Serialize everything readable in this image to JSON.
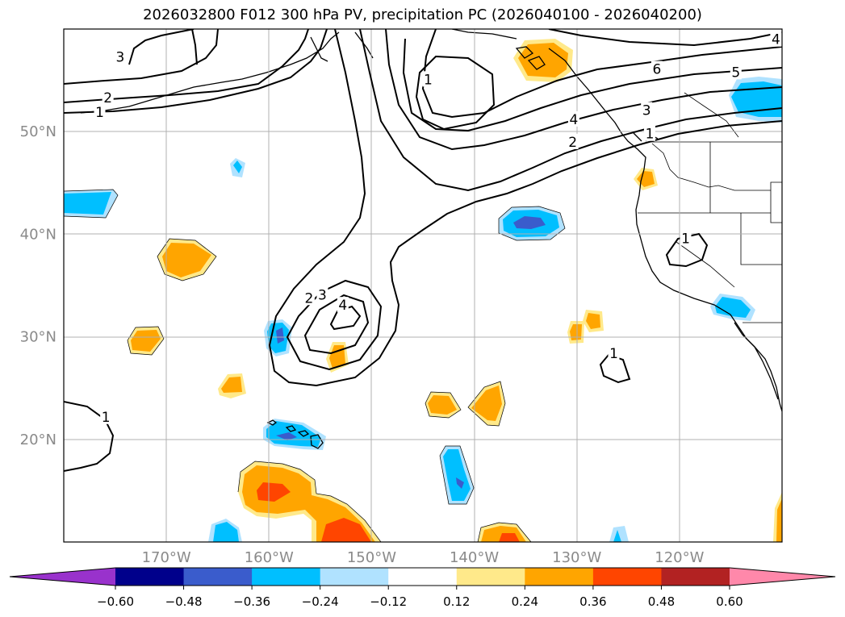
{
  "title": "2026032800 F012 300 hPa PV, precipitation PC (2026040100 - 2026040200)",
  "map": {
    "projection": "equirectangular",
    "lon_range": [
      -180,
      -110
    ],
    "lat_range": [
      10,
      60
    ],
    "lat_ticks": [
      {
        "value": 50,
        "label": "50°N"
      },
      {
        "value": 40,
        "label": "40°N"
      },
      {
        "value": 30,
        "label": "30°N"
      },
      {
        "value": 20,
        "label": "20°N"
      }
    ],
    "lon_ticks": [
      {
        "value": -170,
        "label": "170°W"
      },
      {
        "value": -160,
        "label": "160°W"
      },
      {
        "value": -150,
        "label": "150°W"
      },
      {
        "value": -140,
        "label": "140°W"
      },
      {
        "value": -130,
        "label": "130°W"
      },
      {
        "value": -120,
        "label": "120°W"
      }
    ],
    "pv_contour_labels": [
      {
        "text": "3",
        "lon": -174.5,
        "lat": 57.3
      },
      {
        "text": "2",
        "lon": -175.7,
        "lat": 53.3
      },
      {
        "text": "1",
        "lon": -176.5,
        "lat": 51.9
      },
      {
        "text": "1",
        "lon": -144.5,
        "lat": 55.1
      },
      {
        "text": "6",
        "lon": -122.2,
        "lat": 56.1
      },
      {
        "text": "5",
        "lon": -114.5,
        "lat": 55.8
      },
      {
        "text": "4",
        "lon": -110.6,
        "lat": 59.0
      },
      {
        "text": "3",
        "lon": -123.2,
        "lat": 52.1
      },
      {
        "text": "4",
        "lon": -130.3,
        "lat": 51.2
      },
      {
        "text": "2",
        "lon": -130.4,
        "lat": 49.0
      },
      {
        "text": "1",
        "lon": -122.9,
        "lat": 49.8
      },
      {
        "text": "1",
        "lon": -119.4,
        "lat": 39.6
      },
      {
        "text": "2",
        "lon": -156.1,
        "lat": 33.8
      },
      {
        "text": "3",
        "lon": -154.8,
        "lat": 34.1
      },
      {
        "text": "4",
        "lon": -152.8,
        "lat": 33.1
      },
      {
        "text": "1",
        "lon": -126.4,
        "lat": 28.4
      },
      {
        "text": "1",
        "lon": -175.9,
        "lat": 22.2
      }
    ]
  },
  "colorbar": {
    "levels": [
      -0.6,
      -0.48,
      -0.36,
      -0.24,
      -0.12,
      0.12,
      0.24,
      0.36,
      0.48,
      0.6
    ],
    "tick_labels": [
      "−0.60",
      "−0.48",
      "−0.36",
      "−0.24",
      "−0.12",
      "0.12",
      "0.24",
      "0.36",
      "0.48",
      "0.60"
    ],
    "colors": [
      "#9932cc",
      "#00008b",
      "#3a5ccc",
      "#00bfff",
      "#b0e2ff",
      "#ffffff",
      "#ffe98a",
      "#ffa500",
      "#ff4500",
      "#b22222",
      "#ff88aa"
    ],
    "extend": "both"
  },
  "colors": {
    "grid": "#b0b0b0",
    "axis_label": "#8a8a8a",
    "contour": "#000000"
  }
}
